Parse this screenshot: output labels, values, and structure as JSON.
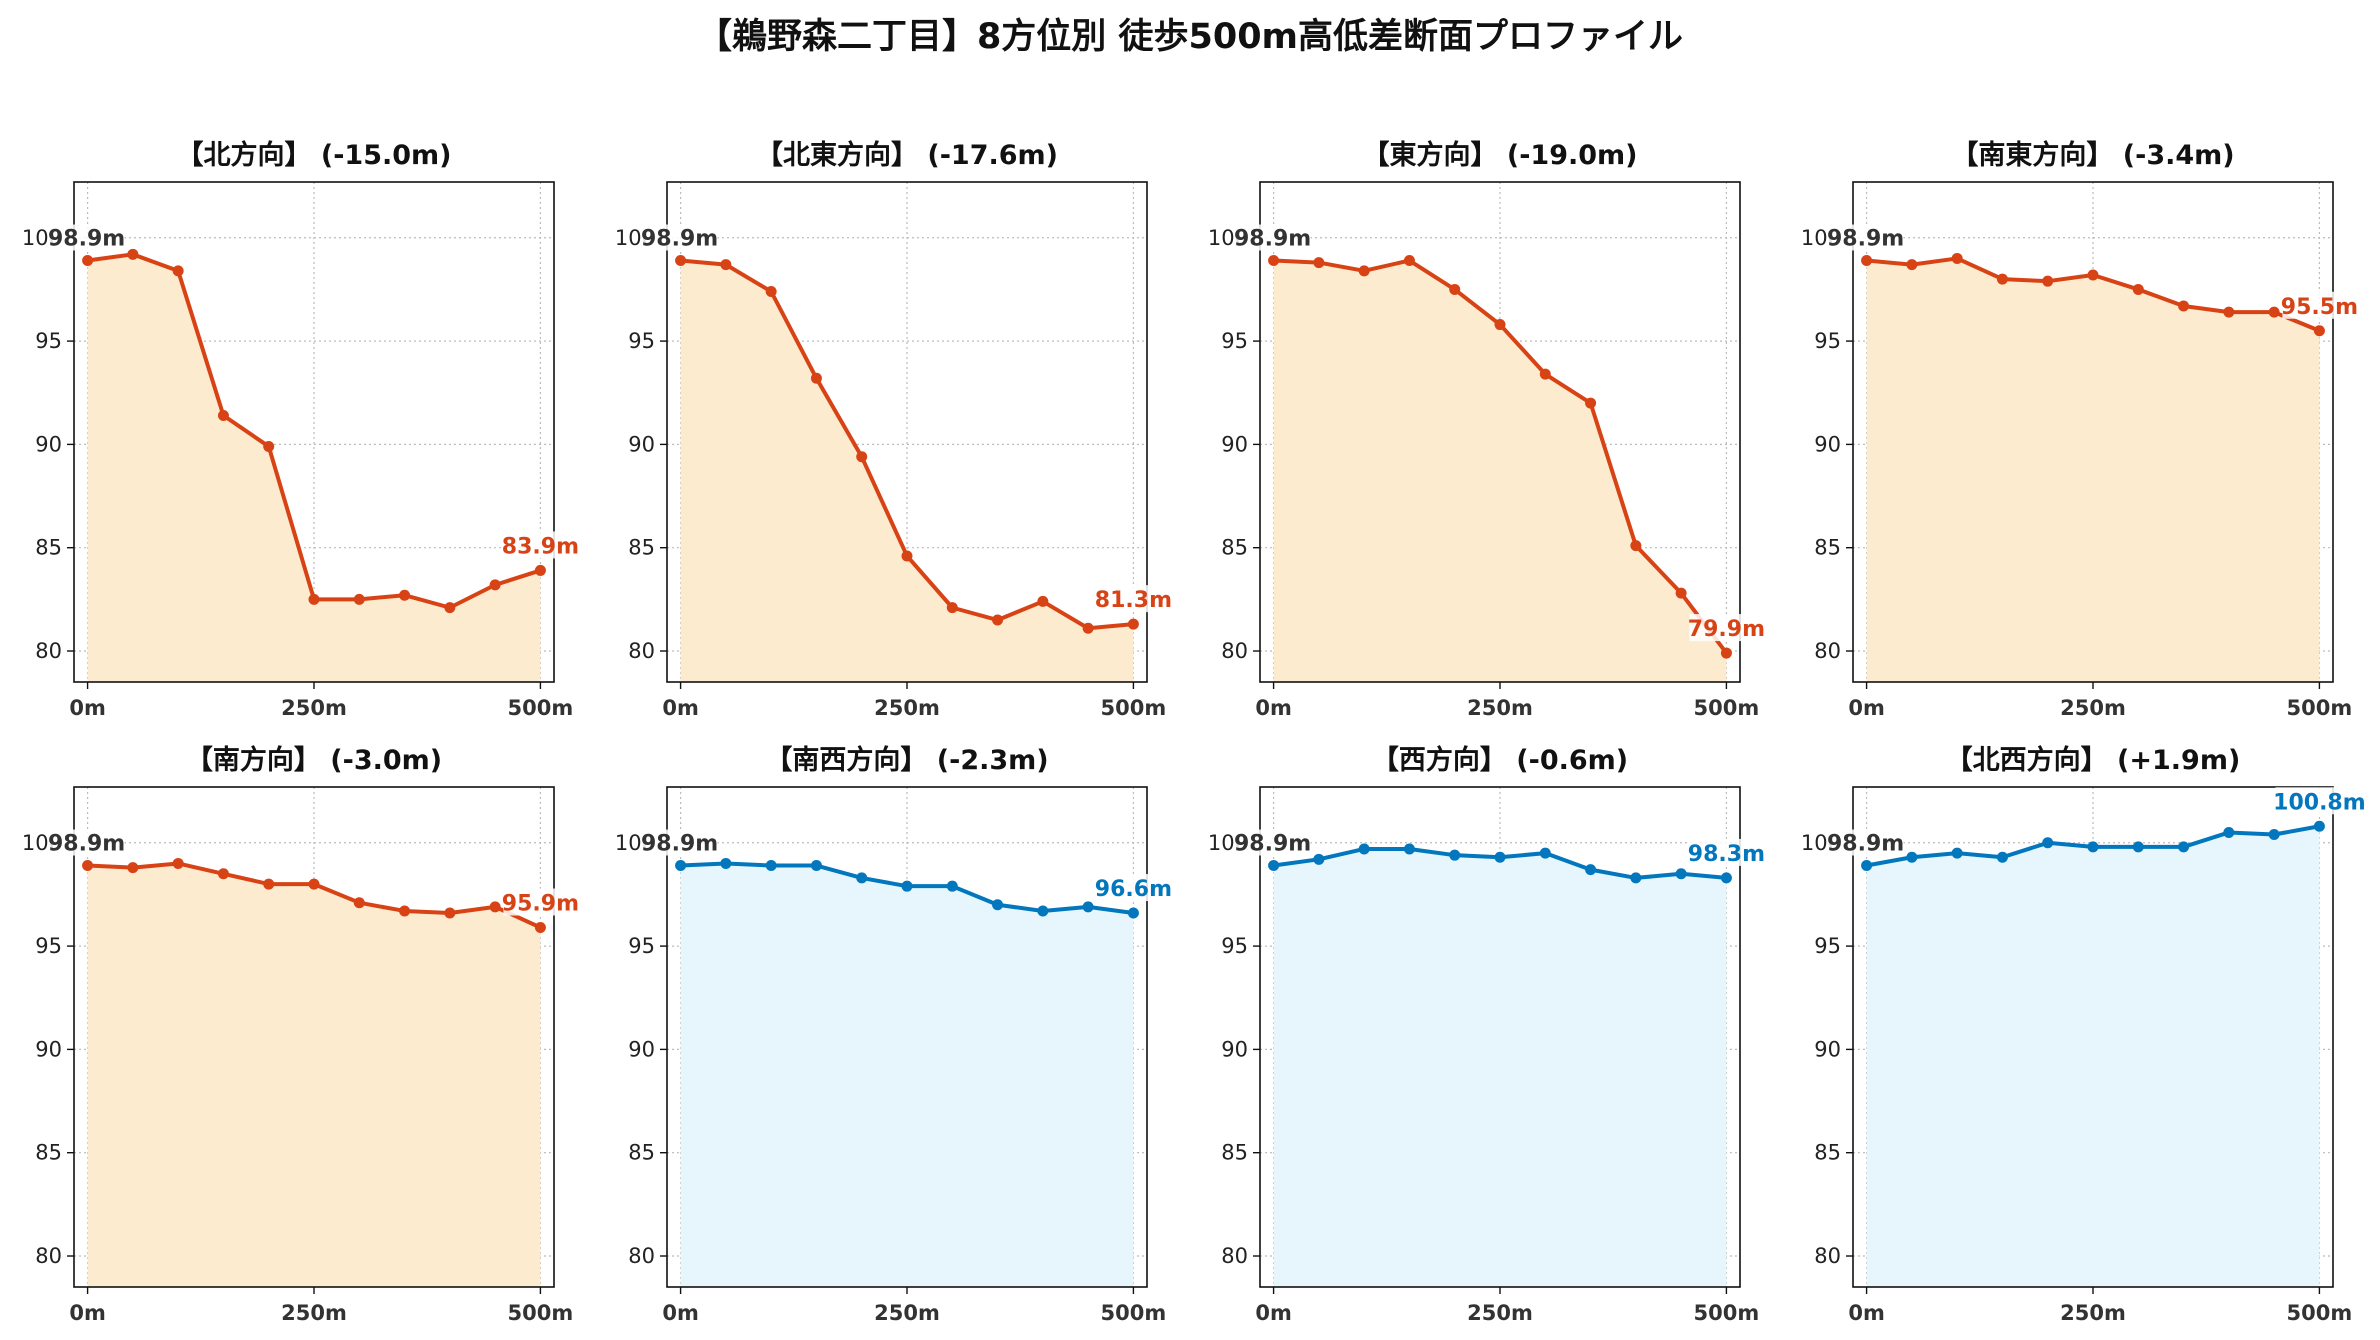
{
  "title": "【鵜野森二丁目】8方位別 徒歩500m高低差断面プロファイル",
  "colors": {
    "down_line": "#d84315",
    "down_fill": "#fdebd0",
    "up_line": "#0277bd",
    "up_fill": "#e6f6fc",
    "start_label": "#333333",
    "grid": "#bbbbbb"
  },
  "chart_data": [
    {
      "type": "area",
      "title": "【北方向】 (-15.0m)",
      "trend": "down",
      "x": [
        0,
        50,
        100,
        150,
        200,
        250,
        300,
        350,
        400,
        450,
        500
      ],
      "values": [
        98.9,
        99.2,
        98.4,
        91.4,
        89.9,
        82.5,
        82.5,
        82.7,
        82.1,
        83.2,
        83.9
      ],
      "start_label": "98.9m",
      "end_label": "83.9m",
      "xticks": [
        0,
        250,
        500
      ],
      "xtick_labels": [
        "0m",
        "250m",
        "500m"
      ],
      "yticks": [
        80,
        85,
        90,
        95,
        100
      ],
      "ytick_labels": [
        "80",
        "85",
        "90",
        "95",
        "100"
      ],
      "xlim": [
        -15,
        515
      ],
      "ylim": [
        78.5,
        102.7
      ],
      "grid": true
    },
    {
      "type": "area",
      "title": "【北東方向】 (-17.6m)",
      "trend": "down",
      "x": [
        0,
        50,
        100,
        150,
        200,
        250,
        300,
        350,
        400,
        450,
        500
      ],
      "values": [
        98.9,
        98.7,
        97.4,
        93.2,
        89.4,
        84.6,
        82.1,
        81.5,
        82.4,
        81.1,
        81.3
      ],
      "start_label": "98.9m",
      "end_label": "81.3m",
      "xticks": [
        0,
        250,
        500
      ],
      "xtick_labels": [
        "0m",
        "250m",
        "500m"
      ],
      "yticks": [
        80,
        85,
        90,
        95,
        100
      ],
      "ytick_labels": [
        "80",
        "85",
        "90",
        "95",
        "100"
      ],
      "xlim": [
        -15,
        515
      ],
      "ylim": [
        78.5,
        102.7
      ],
      "grid": true
    },
    {
      "type": "area",
      "title": "【東方向】 (-19.0m)",
      "trend": "down",
      "x": [
        0,
        50,
        100,
        150,
        200,
        250,
        300,
        350,
        400,
        450,
        500
      ],
      "values": [
        98.9,
        98.8,
        98.4,
        98.9,
        97.5,
        95.8,
        93.4,
        92.0,
        85.1,
        82.8,
        79.9
      ],
      "start_label": "98.9m",
      "end_label": "79.9m",
      "xticks": [
        0,
        250,
        500
      ],
      "xtick_labels": [
        "0m",
        "250m",
        "500m"
      ],
      "yticks": [
        80,
        85,
        90,
        95,
        100
      ],
      "ytick_labels": [
        "80",
        "85",
        "90",
        "95",
        "100"
      ],
      "xlim": [
        -15,
        515
      ],
      "ylim": [
        78.5,
        102.7
      ],
      "grid": true
    },
    {
      "type": "area",
      "title": "【南東方向】 (-3.4m)",
      "trend": "down",
      "x": [
        0,
        50,
        100,
        150,
        200,
        250,
        300,
        350,
        400,
        450,
        500
      ],
      "values": [
        98.9,
        98.7,
        99.0,
        98.0,
        97.9,
        98.2,
        97.5,
        96.7,
        96.4,
        96.4,
        95.5
      ],
      "start_label": "98.9m",
      "end_label": "95.5m",
      "xticks": [
        0,
        250,
        500
      ],
      "xtick_labels": [
        "0m",
        "250m",
        "500m"
      ],
      "yticks": [
        80,
        85,
        90,
        95,
        100
      ],
      "ytick_labels": [
        "80",
        "85",
        "90",
        "95",
        "100"
      ],
      "xlim": [
        -15,
        515
      ],
      "ylim": [
        78.5,
        102.7
      ],
      "grid": true
    },
    {
      "type": "area",
      "title": "【南方向】 (-3.0m)",
      "trend": "down",
      "x": [
        0,
        50,
        100,
        150,
        200,
        250,
        300,
        350,
        400,
        450,
        500
      ],
      "values": [
        98.9,
        98.8,
        99.0,
        98.5,
        98.0,
        98.0,
        97.1,
        96.7,
        96.6,
        96.9,
        95.9
      ],
      "start_label": "98.9m",
      "end_label": "95.9m",
      "xticks": [
        0,
        250,
        500
      ],
      "xtick_labels": [
        "0m",
        "250m",
        "500m"
      ],
      "yticks": [
        80,
        85,
        90,
        95,
        100
      ],
      "ytick_labels": [
        "80",
        "85",
        "90",
        "95",
        "100"
      ],
      "xlim": [
        -15,
        515
      ],
      "ylim": [
        78.5,
        102.7
      ],
      "grid": true
    },
    {
      "type": "area",
      "title": "【南西方向】 (-2.3m)",
      "trend": "up",
      "x": [
        0,
        50,
        100,
        150,
        200,
        250,
        300,
        350,
        400,
        450,
        500
      ],
      "values": [
        98.9,
        99.0,
        98.9,
        98.9,
        98.3,
        97.9,
        97.9,
        97.0,
        96.7,
        96.9,
        96.6
      ],
      "start_label": "98.9m",
      "end_label": "96.6m",
      "xticks": [
        0,
        250,
        500
      ],
      "xtick_labels": [
        "0m",
        "250m",
        "500m"
      ],
      "yticks": [
        80,
        85,
        90,
        95,
        100
      ],
      "ytick_labels": [
        "80",
        "85",
        "90",
        "95",
        "100"
      ],
      "xlim": [
        -15,
        515
      ],
      "ylim": [
        78.5,
        102.7
      ],
      "grid": true
    },
    {
      "type": "area",
      "title": "【西方向】 (-0.6m)",
      "trend": "up",
      "x": [
        0,
        50,
        100,
        150,
        200,
        250,
        300,
        350,
        400,
        450,
        500
      ],
      "values": [
        98.9,
        99.2,
        99.7,
        99.7,
        99.4,
        99.3,
        99.5,
        98.7,
        98.3,
        98.5,
        98.3
      ],
      "start_label": "98.9m",
      "end_label": "98.3m",
      "xticks": [
        0,
        250,
        500
      ],
      "xtick_labels": [
        "0m",
        "250m",
        "500m"
      ],
      "yticks": [
        80,
        85,
        90,
        95,
        100
      ],
      "ytick_labels": [
        "80",
        "85",
        "90",
        "95",
        "100"
      ],
      "xlim": [
        -15,
        515
      ],
      "ylim": [
        78.5,
        102.7
      ],
      "grid": true
    },
    {
      "type": "area",
      "title": "【北西方向】 (+1.9m)",
      "trend": "up",
      "x": [
        0,
        50,
        100,
        150,
        200,
        250,
        300,
        350,
        400,
        450,
        500
      ],
      "values": [
        98.9,
        99.3,
        99.5,
        99.3,
        100.0,
        99.8,
        99.8,
        99.8,
        100.5,
        100.4,
        100.8
      ],
      "start_label": "98.9m",
      "end_label": "100.8m",
      "xticks": [
        0,
        250,
        500
      ],
      "xtick_labels": [
        "0m",
        "250m",
        "500m"
      ],
      "yticks": [
        80,
        85,
        90,
        95,
        100
      ],
      "ytick_labels": [
        "80",
        "85",
        "90",
        "95",
        "100"
      ],
      "xlim": [
        -15,
        515
      ],
      "ylim": [
        78.5,
        102.7
      ],
      "grid": true
    }
  ]
}
